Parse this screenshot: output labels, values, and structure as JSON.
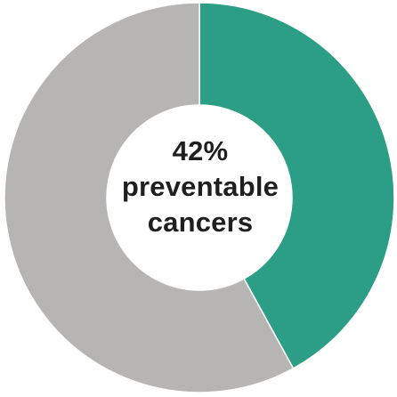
{
  "chart_data": {
    "type": "pie",
    "categories": [
      "preventable cancers",
      ""
    ],
    "values": [
      42,
      58
    ],
    "colors": [
      "#2d9e86",
      "#b7b5b4"
    ],
    "center_label": {
      "value": "42%",
      "line1": "preventable",
      "line2": "cancers"
    },
    "legend": "none",
    "title": ""
  }
}
